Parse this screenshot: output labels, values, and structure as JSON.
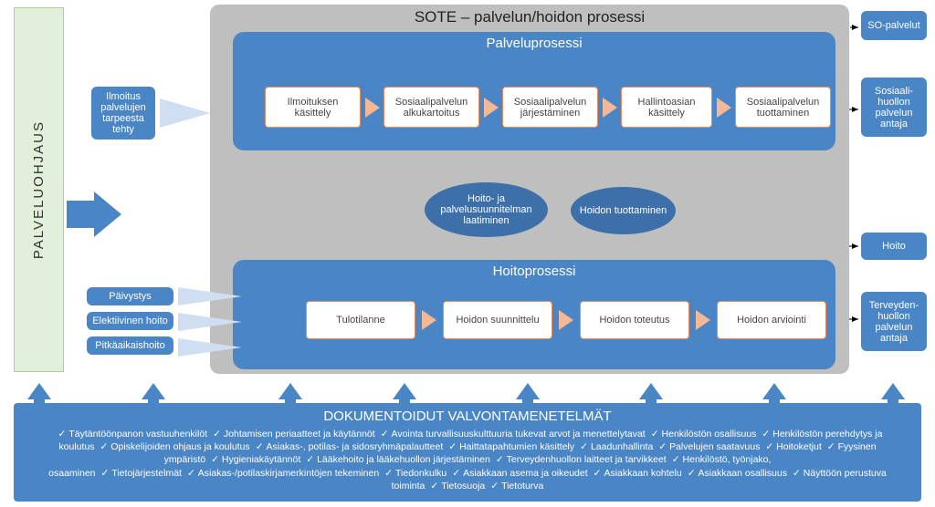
{
  "colors": {
    "blue": "#4a86c5",
    "darkblue": "#3d6fa8",
    "grey": "#bfbfbf",
    "greenbg": "#e2efda",
    "greenbd": "#a9d08e",
    "orange": "#ed8b5a",
    "palearrow": "#f4b894"
  },
  "left_bar": {
    "label": "PALVELUOHJAUS"
  },
  "main_title": "SOTE – palvelun/hoidon prosessi",
  "flows": {
    "top": {
      "title": "Palveluprosessi",
      "steps": [
        "Ilmoituksen käsittely",
        "Sosiaalipalvelun alkukartoitus",
        "Sosiaalipalvelun järjestäminen",
        "Hallintoasian käsittely",
        "Sosiaalipalvelun tuottaminen"
      ]
    },
    "bottom": {
      "title": "Hoitoprosessi",
      "steps": [
        "Tulotilanne",
        "Hoidon suunnittelu",
        "Hoidon toteutus",
        "Hoidon arviointi"
      ]
    }
  },
  "ellipses": {
    "left": "Hoito- ja palvelusuunnitelman laatiminen",
    "right": "Hoidon tuottaminen"
  },
  "inputs": {
    "top": "Ilmoitus palvelujen tarpeesta tehty",
    "bottom": [
      "Päivystys",
      "Elektiivinen hoito",
      "Pitkäaikaishoito"
    ]
  },
  "outputs": {
    "r1": "SO-palvelut",
    "r2": "Sosiaali-huollon palvelun antaja",
    "r3": "Hoito",
    "r4": "Terveyden-huollon palvelun antaja"
  },
  "bottom": {
    "title": "DOKUMENTOIDUT VALVONTAMENETELMÄT",
    "items": [
      "Täytäntöönpanon vastuuhenkilöt",
      "Johtamisen periaatteet ja käytännöt",
      "Avointa turvallisuuskulttuuria tukevat arvot ja menettelytavat",
      "Henkilöstön osallisuus",
      "Henkilöstön perehdytys ja koulutus",
      "Opiskelijoiden ohjaus ja koulutus",
      "Asiakas-, potilas- ja sidosryhmäpalautteet",
      "Haittatapahtumien käsittely",
      "Laadunhallinta",
      "Palvelujen saatavuus",
      "Hoitoketjut",
      "Fyysinen ympäristö",
      "Hygieniakäytännöt",
      "Lääkehoito ja lääkehuollon järjestäminen",
      "Terveydenhuollon laitteet ja tarvikkeet",
      "Henkilöstö, työnjako, osaaminen",
      "Tietojärjestelmät",
      "Asiakas-/potilaskirjamerkintöjen tekeminen",
      "Tiedonkulku",
      "Asiakkaan asema ja oikeudet",
      "Asiakkaan kohtelu",
      "Asiakkaan osallisuus",
      "Näyttöön perustuva toiminta",
      "Tietosuoja",
      "Tietoturva"
    ]
  }
}
